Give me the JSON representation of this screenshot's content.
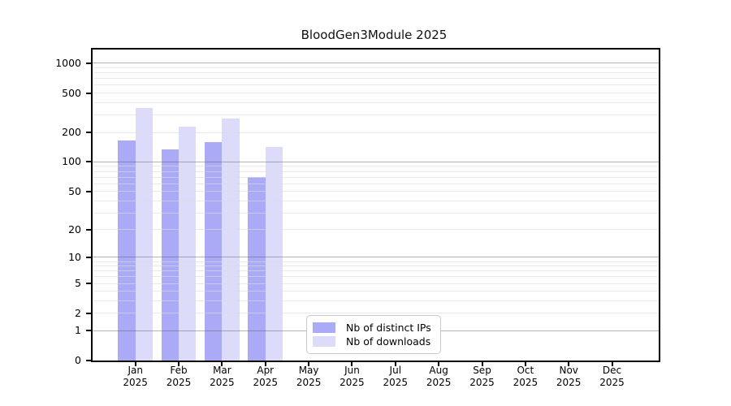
{
  "title": "BloodGen3Module 2025",
  "chart_data": {
    "type": "bar",
    "title": "BloodGen3Module 2025",
    "categories": [
      "Jan 2025",
      "Feb 2025",
      "Mar 2025",
      "Apr 2025",
      "May 2025",
      "Jun 2025",
      "Jul 2025",
      "Aug 2025",
      "Sep 2025",
      "Oct 2025",
      "Nov 2025",
      "Dec 2025"
    ],
    "series": [
      {
        "name": "Nb of distinct IPs",
        "color": "#aaaaf7",
        "values": [
          167,
          134,
          160,
          70,
          0,
          0,
          0,
          0,
          0,
          0,
          0,
          0
        ]
      },
      {
        "name": "Nb of downloads",
        "color": "#dcdcfa",
        "values": [
          355,
          230,
          277,
          142,
          0,
          0,
          0,
          0,
          0,
          0,
          0,
          0
        ]
      }
    ],
    "xlabel": "",
    "ylabel": "",
    "yscale": "log1p",
    "ylim": [
      0,
      1380
    ],
    "yticks": [
      0,
      1,
      2,
      5,
      10,
      20,
      50,
      100,
      200,
      500,
      1000
    ],
    "grid": true,
    "legend_position": "lower center"
  },
  "colors": {
    "axis": "#000000",
    "major_grid": "#b4b4b4",
    "minor_grid": "#ececec",
    "background": "#ffffff"
  }
}
